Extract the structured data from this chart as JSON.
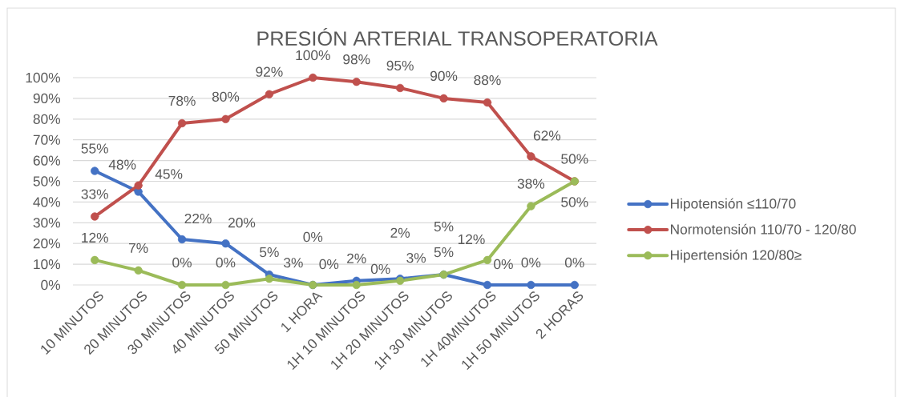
{
  "chart_data": {
    "type": "line",
    "title": "PRESIÓN ARTERIAL TRANSOPERATORIA",
    "categories": [
      "10 MINUTOS",
      "20 MINUTOS",
      "30 MINUTOS",
      "40 MINUTOS",
      "50 MINUTOS",
      "1 HORA",
      "1H 10 MINUTOS",
      "1H 20 MINUTOS",
      "1H 30 MINUTOS",
      "1H 40MINUTOS",
      "1H 50 MINUTOS",
      "2 HORAS"
    ],
    "series": [
      {
        "name": "Hipotensión ≤110/70",
        "color": "#4472c4",
        "values": [
          55,
          45,
          22,
          20,
          5,
          0,
          2,
          3,
          5,
          0,
          0,
          0
        ],
        "value_labels": [
          "55%",
          "45%",
          "22%",
          "20%",
          "5%",
          "0%",
          "2%",
          "3%",
          "5%",
          "0%",
          "0%",
          "0%"
        ]
      },
      {
        "name": "Normotensión 110/70 - 120/80",
        "color": "#c0504d",
        "values": [
          33,
          48,
          78,
          80,
          92,
          100,
          98,
          95,
          90,
          88,
          62,
          50
        ],
        "value_labels": [
          "33%",
          "48%",
          "78%",
          "80%",
          "92%",
          "100%",
          "98%",
          "95%",
          "90%",
          "88%",
          "62%",
          "50%"
        ]
      },
      {
        "name": "Hipertensión 120/80≥",
        "color": "#9bbb59",
        "values": [
          12,
          7,
          0,
          0,
          3,
          0,
          0,
          2,
          5,
          12,
          38,
          50
        ],
        "value_labels": [
          "12%",
          "7%",
          "0%",
          "0%",
          "3%",
          "0%",
          "0%",
          "2%",
          "5%",
          "12%",
          "38%",
          "50%"
        ]
      }
    ],
    "ylim": [
      0,
      100
    ],
    "yticks": [
      {
        "value": 0,
        "label": "0%"
      },
      {
        "value": 10,
        "label": "10%"
      },
      {
        "value": 20,
        "label": "20%"
      },
      {
        "value": 30,
        "label": "30%"
      },
      {
        "value": 40,
        "label": "40%"
      },
      {
        "value": 50,
        "label": "50%"
      },
      {
        "value": 60,
        "label": "60%"
      },
      {
        "value": 70,
        "label": "70%"
      },
      {
        "value": 80,
        "label": "80%"
      },
      {
        "value": 90,
        "label": "90%"
      },
      {
        "value": 100,
        "label": "100%"
      }
    ],
    "grid": "y",
    "legend": "right",
    "marker": "circle",
    "line_style": "solid"
  }
}
